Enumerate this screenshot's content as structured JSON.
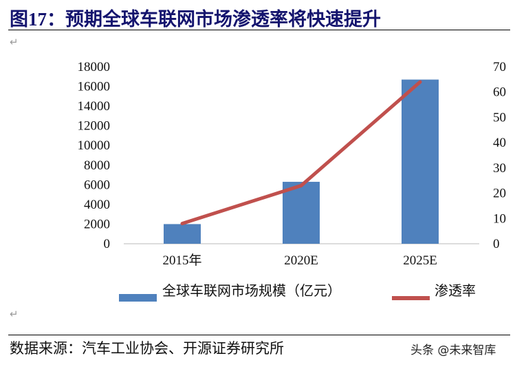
{
  "title": "图17：预期全球车联网市场渗透率将快速提升",
  "source": "数据来源：汽车工业协会、开源证券研究所",
  "watermark": "头条 @未来智库",
  "colors": {
    "bar": "#4f81bd",
    "line": "#c0504d",
    "title": "#14146e"
  },
  "chart_data": {
    "type": "bar+line",
    "categories": [
      "2015年",
      "2020E",
      "2025E"
    ],
    "series": [
      {
        "name": "全球车联网市场规模（亿元）",
        "type": "bar",
        "axis": "left",
        "values": [
          2000,
          6300,
          16700
        ]
      },
      {
        "name": "渗透率",
        "type": "line",
        "axis": "right",
        "values": [
          8,
          23,
          64
        ]
      }
    ],
    "left_axis": {
      "range": [
        0,
        18000
      ],
      "ticks": [
        0,
        2000,
        4000,
        6000,
        8000,
        10000,
        12000,
        14000,
        16000,
        18000
      ]
    },
    "right_axis": {
      "range": [
        0,
        70
      ],
      "ticks": [
        0,
        10,
        20,
        30,
        40,
        50,
        60,
        70
      ]
    },
    "grid": false,
    "legend_position": "bottom"
  }
}
